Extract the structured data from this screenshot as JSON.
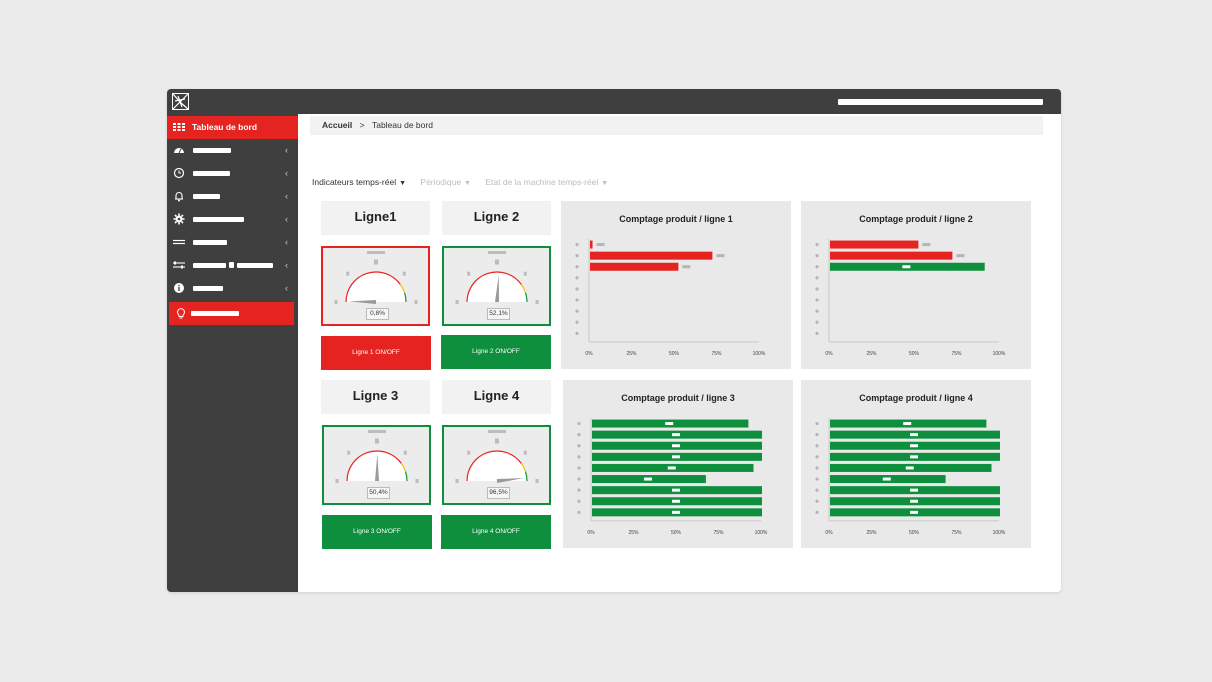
{
  "header": {
    "logo_icon": "app-logo-icon"
  },
  "sidebar": {
    "accent": "#e52421",
    "items": [
      {
        "icon": "grid-icon",
        "label": "Tableau de bord",
        "active": true
      },
      {
        "icon": "speedometer-icon",
        "chevron": "‹"
      },
      {
        "icon": "clock-icon",
        "chevron": "‹"
      },
      {
        "icon": "bell-icon",
        "chevron": "‹"
      },
      {
        "icon": "gear-icon",
        "chevron": "‹"
      },
      {
        "icon": "lines-icon",
        "chevron": "‹"
      },
      {
        "icon": "sliders-icon",
        "chevron": "‹"
      },
      {
        "icon": "info-icon",
        "chevron": "‹"
      },
      {
        "icon": "lightbulb-icon",
        "active": true
      }
    ]
  },
  "breadcrumb": {
    "home": "Accueil",
    "separator": ">",
    "current": "Tableau de bord"
  },
  "tabs": [
    {
      "label": "Indicateurs temps-réel",
      "active": true
    },
    {
      "label": "Périodique",
      "active": false
    },
    {
      "label": "Etat de la machine temps-réel",
      "active": false
    }
  ],
  "lines": [
    {
      "title": "Ligne1",
      "gauge_value": "0,8%",
      "gauge_pct": 0.8,
      "status": "red",
      "button": "Ligne 1 ON/OFF"
    },
    {
      "title": "Ligne 2",
      "gauge_value": "52,1%",
      "gauge_pct": 52.1,
      "status": "green",
      "button": "Ligne 2 ON/OFF"
    },
    {
      "title": "Ligne 3",
      "gauge_value": "50,4%",
      "gauge_pct": 50.4,
      "status": "green",
      "button": "Ligne 3 ON/OFF"
    },
    {
      "title": "Ligne 4",
      "gauge_value": "96,5%",
      "gauge_pct": 96.5,
      "status": "green",
      "button": "Ligne 4 ON/OFF"
    }
  ],
  "colors": {
    "red": "#e52421",
    "green": "#0e8f3e",
    "panel": "#e9e9e9"
  },
  "chart_data": [
    {
      "type": "bar",
      "orientation": "horizontal",
      "title": "Comptage produit / ligne 1",
      "x_ticks": [
        "0%",
        "25%",
        "50%",
        "75%",
        "100%"
      ],
      "xlim": [
        0,
        100
      ],
      "values": [
        1.5,
        72,
        52
      ],
      "colors": [
        "red",
        "red",
        "red"
      ],
      "category_count": 9
    },
    {
      "type": "bar",
      "orientation": "horizontal",
      "title": "Comptage produit / ligne 2",
      "x_ticks": [
        "0%",
        "25%",
        "50%",
        "75%",
        "100%"
      ],
      "xlim": [
        0,
        100
      ],
      "values": [
        52,
        72,
        91
      ],
      "colors": [
        "red",
        "red",
        "green"
      ],
      "category_count": 9
    },
    {
      "type": "bar",
      "orientation": "horizontal",
      "title": "Comptage produit / ligne 3",
      "x_ticks": [
        "0%",
        "25%",
        "50%",
        "75%",
        "100%"
      ],
      "xlim": [
        0,
        100
      ],
      "values": [
        92,
        100,
        100,
        100,
        95,
        67,
        100,
        100,
        100
      ],
      "colors": [
        "green",
        "green",
        "green",
        "green",
        "green",
        "green",
        "green",
        "green",
        "green"
      ],
      "category_count": 9
    },
    {
      "type": "bar",
      "orientation": "horizontal",
      "title": "Comptage produit / ligne 4",
      "x_ticks": [
        "0%",
        "25%",
        "50%",
        "75%",
        "100%"
      ],
      "xlim": [
        0,
        100
      ],
      "values": [
        92,
        100,
        100,
        100,
        95,
        68,
        100,
        100,
        100
      ],
      "colors": [
        "green",
        "green",
        "green",
        "green",
        "green",
        "green",
        "green",
        "green",
        "green"
      ],
      "category_count": 9
    }
  ]
}
